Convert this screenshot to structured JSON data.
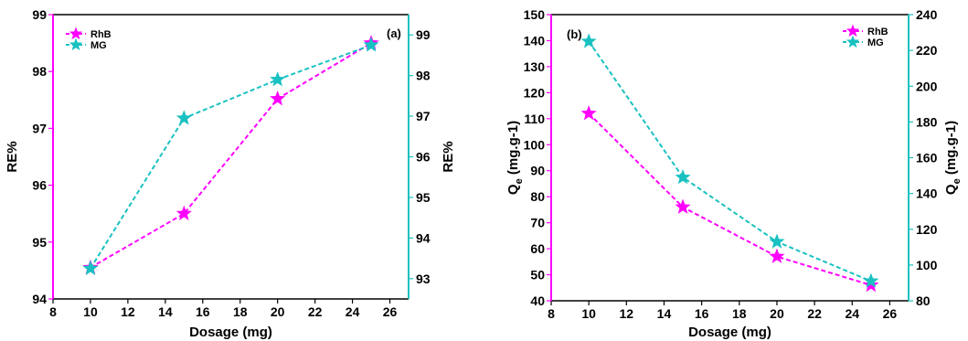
{
  "colors": {
    "rhb": "#ff00ff",
    "mg": "#19c1c1",
    "axis": "#000000"
  },
  "chart_data": [
    {
      "type": "line",
      "panel_label": "(a)",
      "xlabel": "Dosage (mg)",
      "ylabel_left": "RE%",
      "ylabel_right": "RE%",
      "xlim": [
        8,
        27
      ],
      "xticks": [
        8,
        10,
        12,
        14,
        16,
        18,
        20,
        22,
        24,
        26
      ],
      "ylim_left": [
        94,
        99
      ],
      "yticks_left": [
        94,
        95,
        96,
        97,
        98,
        99
      ],
      "ylim_right": [
        92.5,
        99.5
      ],
      "yticks_right": [
        93,
        94,
        95,
        96,
        97,
        98,
        99
      ],
      "legend_position": "top-left",
      "x": [
        10,
        15,
        20,
        25
      ],
      "series": [
        {
          "name": "RhB",
          "color": "#ff00ff",
          "axis": "left",
          "values": [
            94.55,
            95.5,
            97.52,
            98.5
          ]
        },
        {
          "name": "MG",
          "color": "#19c1c1",
          "axis": "right",
          "values": [
            93.25,
            96.95,
            97.9,
            98.75
          ]
        }
      ]
    },
    {
      "type": "line",
      "panel_label": "(b)",
      "xlabel": "Dosage (mg)",
      "ylabel_left": "Q",
      "ylabel_left_sub": "e",
      "ylabel_left_rest": " (mg.g-1)",
      "ylabel_right": "Q",
      "ylabel_right_sub": "e",
      "ylabel_right_rest": " (mg.g-1)",
      "xlim": [
        8,
        27
      ],
      "xticks": [
        8,
        10,
        12,
        14,
        16,
        18,
        20,
        22,
        24,
        26
      ],
      "ylim_left": [
        40,
        150
      ],
      "yticks_left": [
        40,
        50,
        60,
        70,
        80,
        90,
        100,
        110,
        120,
        130,
        140,
        150
      ],
      "ylim_right": [
        80,
        240
      ],
      "yticks_right": [
        80,
        100,
        120,
        140,
        160,
        180,
        200,
        220,
        240
      ],
      "legend_position": "top-right",
      "x": [
        10,
        15,
        20,
        25
      ],
      "series": [
        {
          "name": "RhB",
          "color": "#ff00ff",
          "axis": "left",
          "values": [
            112,
            76,
            57,
            46
          ]
        },
        {
          "name": "MG",
          "color": "#19c1c1",
          "axis": "right",
          "values": [
            225,
            149,
            113,
            91
          ]
        }
      ]
    }
  ]
}
